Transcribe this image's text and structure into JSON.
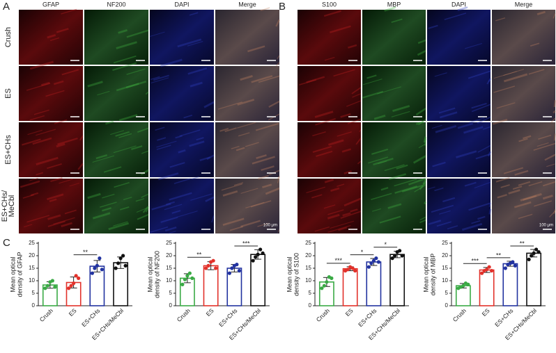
{
  "panel_labels": [
    "A",
    "B",
    "C"
  ],
  "panel_a": {
    "columns": [
      "GFAP",
      "NF200",
      "DAPI",
      "Merge"
    ],
    "scale_label": "100 μm"
  },
  "panel_b": {
    "columns": [
      "S100",
      "MBP",
      "DAPI",
      "Merge"
    ],
    "scale_label": "100 μm"
  },
  "row_labels": [
    [
      "Crush"
    ],
    [
      "ES"
    ],
    [
      "ES+CHs"
    ],
    [
      "ES+CHs/",
      "MeCbl"
    ]
  ],
  "chart_data": [
    {
      "type": "bar",
      "ylabel": [
        "Mean optical",
        "density of GFAP"
      ],
      "categories": [
        "Crush",
        "ES",
        "ES+CHs",
        "ES+CHs/MeCbl"
      ],
      "colors": [
        "#3aaa45",
        "#e2312a",
        "#2233a0",
        "#111111"
      ],
      "values": [
        8.3,
        9.3,
        15.8,
        17.2
      ],
      "errors": [
        1.3,
        2.2,
        2.3,
        2.3
      ],
      "points": [
        [
          7,
          8,
          9.5,
          10,
          7.5
        ],
        [
          7,
          8,
          9,
          12,
          11
        ],
        [
          13,
          15,
          16,
          19,
          14.5
        ],
        [
          15,
          17,
          19,
          20,
          16
        ]
      ],
      "ylim": [
        0,
        25
      ],
      "yticks": [
        0,
        5,
        10,
        15,
        20,
        25
      ],
      "significance": [
        {
          "from": 1,
          "to": 2,
          "label": "**"
        }
      ]
    },
    {
      "type": "bar",
      "ylabel": [
        "Mean optical",
        "density of NF200"
      ],
      "categories": [
        "Crush",
        "ES",
        "ES+CHs",
        "ES+CHs/MeCbl"
      ],
      "colors": [
        "#3aaa45",
        "#e2312a",
        "#2233a0",
        "#111111"
      ],
      "values": [
        11,
        16,
        15,
        20.5
      ],
      "errors": [
        1.8,
        1.6,
        1.5,
        1.9
      ],
      "points": [
        [
          8.5,
          10.5,
          12,
          13,
          11
        ],
        [
          15,
          16,
          17.5,
          18,
          15
        ],
        [
          13,
          15,
          16,
          16.5,
          14
        ],
        [
          18,
          19.5,
          20.5,
          22.5,
          21
        ]
      ],
      "ylim": [
        0,
        25
      ],
      "yticks": [
        0,
        5,
        10,
        15,
        20,
        25
      ],
      "significance": [
        {
          "from": 0,
          "to": 1,
          "label": "**"
        },
        {
          "from": 2,
          "to": 3,
          "label": "***"
        }
      ]
    },
    {
      "type": "bar",
      "ylabel": [
        "Mean optical",
        "density of S100"
      ],
      "categories": [
        "Crush",
        "ES",
        "ES+CHs",
        "ES+CHs/MeCbl"
      ],
      "colors": [
        "#3aaa45",
        "#e2312a",
        "#2233a0",
        "#111111"
      ],
      "values": [
        9.5,
        14.8,
        17.5,
        20.5
      ],
      "errors": [
        1.8,
        0.8,
        1.4,
        1.3
      ],
      "points": [
        [
          7,
          8,
          9.5,
          11.5,
          11
        ],
        [
          14,
          14.5,
          15.5,
          15,
          14
        ],
        [
          15.5,
          17,
          18,
          19,
          17.5
        ],
        [
          19,
          20,
          21.5,
          22,
          20
        ]
      ],
      "ylim": [
        0,
        25
      ],
      "yticks": [
        0,
        5,
        10,
        15,
        20,
        25
      ],
      "significance": [
        {
          "from": 0,
          "to": 1,
          "label": "***"
        },
        {
          "from": 1,
          "to": 2,
          "label": "*"
        },
        {
          "from": 2,
          "to": 3,
          "label": "*"
        }
      ]
    },
    {
      "type": "bar",
      "ylabel": [
        "Mean optical",
        "density of MBP"
      ],
      "categories": [
        "Crush",
        "ES",
        "ES+CHs",
        "ES+CHs/MeCbl"
      ],
      "colors": [
        "#3aaa45",
        "#e2312a",
        "#2233a0",
        "#111111"
      ],
      "values": [
        8,
        14.3,
        16.8,
        21
      ],
      "errors": [
        0.9,
        1,
        1,
        1.5
      ],
      "points": [
        [
          7,
          7.5,
          8,
          9,
          8.5
        ],
        [
          13,
          14,
          14.5,
          15.5,
          14
        ],
        [
          15,
          16.5,
          17,
          17.5,
          16
        ],
        [
          18.5,
          20,
          21,
          22.5,
          21.5
        ]
      ],
      "ylim": [
        0,
        25
      ],
      "yticks": [
        0,
        5,
        10,
        15,
        20,
        25
      ],
      "significance": [
        {
          "from": 0,
          "to": 1,
          "label": "***"
        },
        {
          "from": 1,
          "to": 2,
          "label": "**"
        },
        {
          "from": 2,
          "to": 3,
          "label": "**"
        }
      ]
    }
  ]
}
